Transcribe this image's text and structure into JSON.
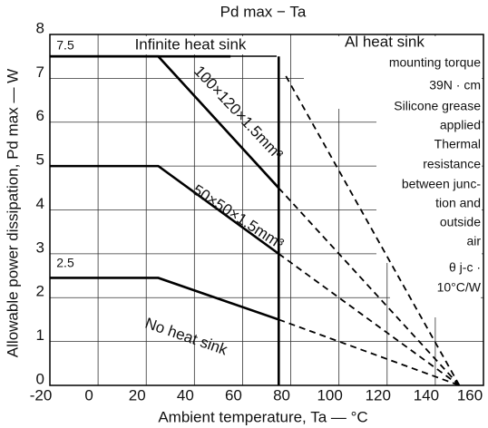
{
  "chart_data": {
    "type": "line",
    "title": "Pd max − Ta",
    "x_label": "Ambient temperature, Ta — °C",
    "y_label": "Allowable power dissipation, Pd max — W",
    "xlim": [
      -20,
      160
    ],
    "xticks": [
      -20,
      0,
      20,
      40,
      60,
      80,
      100,
      120,
      140,
      160
    ],
    "ylim": [
      0,
      8
    ],
    "yticks": [
      0,
      1,
      2,
      3,
      4,
      5,
      6,
      7,
      8
    ],
    "grid": true,
    "color": "#000000",
    "series": [
      {
        "name": "Infinite heat sink",
        "style": "solid",
        "x": [
          -20,
          55
        ],
        "values": [
          7.5,
          7.5
        ]
      },
      {
        "style": "solid",
        "x": [
          75,
          75
        ],
        "values": [
          7.5,
          0
        ]
      },
      {
        "style": "dashed",
        "x": [
          78,
          150
        ],
        "values": [
          7.05,
          0
        ]
      },
      {
        "name": "100×120×1.5mm³",
        "style": "solid",
        "x": [
          -20,
          25,
          75
        ],
        "values": [
          7.5,
          7.5,
          4.5
        ]
      },
      {
        "style": "dashed",
        "x": [
          75,
          150
        ],
        "values": [
          4.5,
          0
        ]
      },
      {
        "name": "50×50×1.5mm³",
        "style": "solid",
        "x": [
          -20,
          25,
          75
        ],
        "values": [
          5,
          5,
          3
        ]
      },
      {
        "style": "dashed",
        "x": [
          75,
          150
        ],
        "values": [
          3,
          0
        ]
      },
      {
        "name": "No heat sink",
        "style": "solid",
        "x": [
          -20,
          25,
          75
        ],
        "values": [
          2.45,
          2.45,
          1.5
        ]
      },
      {
        "style": "dashed",
        "x": [
          75,
          150
        ],
        "values": [
          1.5,
          0
        ]
      }
    ],
    "annotations": [
      "7.5",
      "2.5",
      "Al heat sink",
      "mounting torque",
      "39N · cm",
      "Silicone grease",
      "applied",
      "Thermal",
      "resistance",
      "between junc-",
      "tion and",
      "outside",
      "air",
      "θ j-c ·",
      "10°C/W"
    ]
  }
}
